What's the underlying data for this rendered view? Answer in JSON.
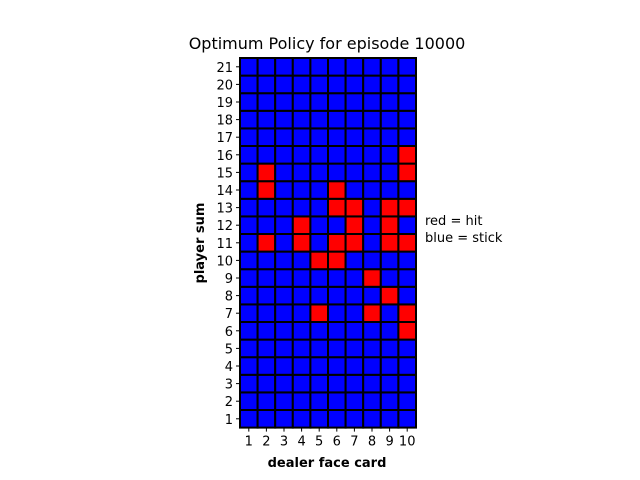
{
  "chart_data": {
    "type": "heatmap",
    "title": "Optimum Policy for episode 10000",
    "xlabel": "dealer face card",
    "ylabel": "player sum",
    "x_categories": [
      "1",
      "2",
      "3",
      "4",
      "5",
      "6",
      "7",
      "8",
      "9",
      "10"
    ],
    "y_categories": [
      "1",
      "2",
      "3",
      "4",
      "5",
      "6",
      "7",
      "8",
      "9",
      "10",
      "11",
      "12",
      "13",
      "14",
      "15",
      "16",
      "17",
      "18",
      "19",
      "20",
      "21"
    ],
    "value_meaning": {
      "1": "hit",
      "0": "stick"
    },
    "colors": {
      "hit": "#ff0000",
      "stick": "#0000ff",
      "grid": "#000000"
    },
    "legend": [
      "red = hit",
      "blue = stick"
    ],
    "grid": true,
    "values": [
      [
        0,
        0,
        0,
        0,
        0,
        0,
        0,
        0,
        0,
        0
      ],
      [
        0,
        0,
        0,
        0,
        0,
        0,
        0,
        0,
        0,
        0
      ],
      [
        0,
        0,
        0,
        0,
        0,
        0,
        0,
        0,
        0,
        0
      ],
      [
        0,
        0,
        0,
        0,
        0,
        0,
        0,
        0,
        0,
        0
      ],
      [
        0,
        0,
        0,
        0,
        0,
        0,
        0,
        0,
        0,
        0
      ],
      [
        0,
        0,
        0,
        0,
        0,
        0,
        0,
        0,
        0,
        1
      ],
      [
        0,
        0,
        0,
        0,
        1,
        0,
        0,
        1,
        0,
        1
      ],
      [
        0,
        0,
        0,
        0,
        0,
        0,
        0,
        0,
        1,
        0
      ],
      [
        0,
        0,
        0,
        0,
        0,
        0,
        0,
        1,
        0,
        0
      ],
      [
        0,
        0,
        0,
        0,
        1,
        1,
        0,
        0,
        0,
        0
      ],
      [
        0,
        1,
        0,
        1,
        0,
        1,
        1,
        0,
        1,
        1
      ],
      [
        0,
        0,
        0,
        1,
        0,
        0,
        1,
        0,
        1,
        0
      ],
      [
        0,
        0,
        0,
        0,
        0,
        1,
        1,
        0,
        1,
        1
      ],
      [
        0,
        1,
        0,
        0,
        0,
        1,
        0,
        0,
        0,
        0
      ],
      [
        0,
        1,
        0,
        0,
        0,
        0,
        0,
        0,
        0,
        1
      ],
      [
        0,
        0,
        0,
        0,
        0,
        0,
        0,
        0,
        0,
        1
      ],
      [
        0,
        0,
        0,
        0,
        0,
        0,
        0,
        0,
        0,
        0
      ],
      [
        0,
        0,
        0,
        0,
        0,
        0,
        0,
        0,
        0,
        0
      ],
      [
        0,
        0,
        0,
        0,
        0,
        0,
        0,
        0,
        0,
        0
      ],
      [
        0,
        0,
        0,
        0,
        0,
        0,
        0,
        0,
        0,
        0
      ],
      [
        0,
        0,
        0,
        0,
        0,
        0,
        0,
        0,
        0,
        0
      ]
    ]
  }
}
